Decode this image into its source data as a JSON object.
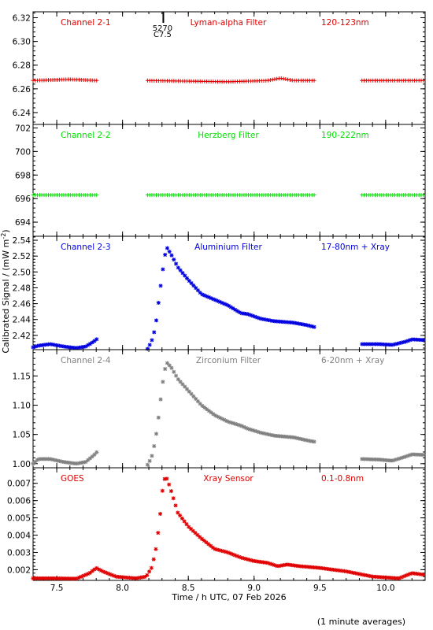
{
  "figure": {
    "ylabel_html": [
      "Calibrated Signal / (mW m",
      "-2",
      ")"
    ],
    "xlabel": "Time / h UTC, 07 Feb 2026",
    "footnote": "(1 minute averages)",
    "event": {
      "x": 8.31,
      "label_top": "5270",
      "label_bottom": "C7.5"
    }
  },
  "chart_data": [
    {
      "type": "scatter",
      "panel": "Channel 2-1",
      "name_label": "Channel 2-1",
      "filter_label": "Lyman-alpha Filter",
      "band_label": "120-123nm",
      "color": "#e00000",
      "marker": "plus",
      "xlim": [
        7.32,
        10.3
      ],
      "ylim": [
        6.23,
        6.325
      ],
      "yticks": [
        6.24,
        6.26,
        6.28,
        6.3,
        6.32
      ],
      "ytick_labels": [
        "6.24",
        "6.26",
        "6.28",
        "6.30",
        "6.32"
      ],
      "segments": [
        {
          "x_start": 7.32,
          "x_end": 7.81,
          "profile": [
            [
              7.32,
              6.267
            ],
            [
              7.6,
              6.268
            ],
            [
              7.81,
              6.267
            ]
          ]
        },
        {
          "x_start": 8.19,
          "x_end": 9.47,
          "profile": [
            [
              8.19,
              6.267
            ],
            [
              8.8,
              6.266
            ],
            [
              9.1,
              6.267
            ],
            [
              9.2,
              6.269
            ],
            [
              9.3,
              6.267
            ],
            [
              9.47,
              6.267
            ]
          ]
        },
        {
          "x_start": 9.82,
          "x_end": 10.3,
          "profile": [
            [
              9.82,
              6.267
            ],
            [
              10.3,
              6.267
            ]
          ]
        }
      ]
    },
    {
      "type": "scatter",
      "panel": "Channel 2-2",
      "name_label": "Channel 2-2",
      "filter_label": "Herzberg Filter",
      "band_label": "190-222nm",
      "color": "#00e000",
      "marker": "plus",
      "xlim": [
        7.32,
        10.3
      ],
      "ylim": [
        692.8,
        702.3
      ],
      "yticks": [
        694,
        696,
        698,
        700,
        702
      ],
      "ytick_labels": [
        "694",
        "696",
        "698",
        "700",
        "702"
      ],
      "segments": [
        {
          "x_start": 7.32,
          "x_end": 7.81,
          "profile": [
            [
              7.32,
              696.3
            ],
            [
              7.81,
              696.3
            ]
          ]
        },
        {
          "x_start": 8.19,
          "x_end": 9.47,
          "profile": [
            [
              8.19,
              696.3
            ],
            [
              9.47,
              696.3
            ]
          ]
        },
        {
          "x_start": 9.82,
          "x_end": 10.3,
          "profile": [
            [
              9.82,
              696.3
            ],
            [
              10.3,
              696.3
            ]
          ]
        }
      ]
    },
    {
      "type": "scatter",
      "panel": "Channel 2-3",
      "name_label": "Channel 2-3",
      "filter_label": "Aluminium Filter",
      "band_label": "17-80nm + Xray",
      "color": "#0000e0",
      "marker": "star",
      "xlim": [
        7.32,
        10.3
      ],
      "ylim": [
        2.402,
        2.545
      ],
      "yticks": [
        2.42,
        2.44,
        2.46,
        2.48,
        2.5,
        2.52,
        2.54
      ],
      "ytick_labels": [
        "2.42",
        "2.44",
        "2.46",
        "2.48",
        "2.50",
        "2.52",
        "2.54"
      ],
      "segments": [
        {
          "x_start": 7.32,
          "x_end": 7.81,
          "profile": [
            [
              7.32,
              2.405
            ],
            [
              7.36,
              2.407
            ],
            [
              7.45,
              2.409
            ],
            [
              7.55,
              2.406
            ],
            [
              7.65,
              2.404
            ],
            [
              7.72,
              2.406
            ],
            [
              7.78,
              2.412
            ],
            [
              7.81,
              2.416
            ]
          ]
        },
        {
          "x_start": 8.19,
          "x_end": 9.47,
          "profile": [
            [
              8.19,
              2.403
            ],
            [
              8.22,
              2.412
            ],
            [
              8.25,
              2.43
            ],
            [
              8.28,
              2.47
            ],
            [
              8.3,
              2.495
            ],
            [
              8.32,
              2.52
            ],
            [
              8.34,
              2.53
            ],
            [
              8.37,
              2.522
            ],
            [
              8.42,
              2.506
            ],
            [
              8.5,
              2.49
            ],
            [
              8.6,
              2.472
            ],
            [
              8.7,
              2.465
            ],
            [
              8.8,
              2.458
            ],
            [
              8.9,
              2.448
            ],
            [
              8.95,
              2.447
            ],
            [
              9.05,
              2.441
            ],
            [
              9.15,
              2.438
            ],
            [
              9.3,
              2.436
            ],
            [
              9.4,
              2.433
            ],
            [
              9.47,
              2.43
            ]
          ]
        },
        {
          "x_start": 9.82,
          "x_end": 10.3,
          "profile": [
            [
              9.82,
              2.409
            ],
            [
              9.95,
              2.409
            ],
            [
              10.05,
              2.408
            ],
            [
              10.15,
              2.412
            ],
            [
              10.2,
              2.415
            ],
            [
              10.3,
              2.414
            ]
          ]
        }
      ]
    },
    {
      "type": "scatter",
      "panel": "Channel 2-4",
      "name_label": "Channel 2-4",
      "filter_label": "Zirconium Filter",
      "band_label": "6-20nm + Xray",
      "color": "#808080",
      "marker": "star",
      "xlim": [
        7.32,
        10.3
      ],
      "ylim": [
        0.993,
        1.195
      ],
      "yticks": [
        1.0,
        1.05,
        1.1,
        1.15
      ],
      "ytick_labels": [
        "1.00",
        "1.05",
        "1.10",
        "1.15"
      ],
      "segments": [
        {
          "x_start": 7.32,
          "x_end": 7.81,
          "profile": [
            [
              7.32,
              1.0
            ],
            [
              7.36,
              1.008
            ],
            [
              7.45,
              1.008
            ],
            [
              7.55,
              1.003
            ],
            [
              7.65,
              1.0
            ],
            [
              7.72,
              1.003
            ],
            [
              7.78,
              1.014
            ],
            [
              7.81,
              1.021
            ]
          ]
        },
        {
          "x_start": 8.19,
          "x_end": 9.47,
          "profile": [
            [
              8.19,
              0.998
            ],
            [
              8.22,
              1.01
            ],
            [
              8.25,
              1.04
            ],
            [
              8.28,
              1.09
            ],
            [
              8.3,
              1.13
            ],
            [
              8.32,
              1.16
            ],
            [
              8.34,
              1.172
            ],
            [
              8.37,
              1.165
            ],
            [
              8.42,
              1.145
            ],
            [
              8.5,
              1.125
            ],
            [
              8.6,
              1.1
            ],
            [
              8.7,
              1.083
            ],
            [
              8.8,
              1.072
            ],
            [
              8.9,
              1.065
            ],
            [
              8.95,
              1.06
            ],
            [
              9.05,
              1.053
            ],
            [
              9.15,
              1.048
            ],
            [
              9.3,
              1.045
            ],
            [
              9.4,
              1.04
            ],
            [
              9.47,
              1.037
            ]
          ]
        },
        {
          "x_start": 9.82,
          "x_end": 10.3,
          "profile": [
            [
              9.82,
              1.008
            ],
            [
              9.95,
              1.007
            ],
            [
              10.05,
              1.005
            ],
            [
              10.15,
              1.012
            ],
            [
              10.2,
              1.016
            ],
            [
              10.3,
              1.015
            ]
          ]
        }
      ]
    },
    {
      "type": "scatter",
      "panel": "GOES",
      "name_label": "GOES",
      "filter_label": "Xray Sensor",
      "band_label": "0.1-0.8nm",
      "color": "#e00000",
      "marker": "star",
      "xlim": [
        7.32,
        10.3
      ],
      "ylim": [
        0.00138,
        0.0079
      ],
      "yticks": [
        0.002,
        0.003,
        0.004,
        0.005,
        0.006,
        0.007
      ],
      "ytick_labels": [
        "0.002",
        "0.003",
        "0.004",
        "0.005",
        "0.006",
        "0.007"
      ],
      "xticks": [
        7.5,
        8.0,
        8.5,
        9.0,
        9.5,
        10.0
      ],
      "xtick_labels": [
        "7.5",
        "8.0",
        "8.5",
        "9.0",
        "9.5",
        "10.0"
      ],
      "segments": [
        {
          "x_start": 7.32,
          "x_end": 10.3,
          "profile": [
            [
              7.32,
              0.0015
            ],
            [
              7.45,
              0.0015
            ],
            [
              7.65,
              0.00148
            ],
            [
              7.75,
              0.0018
            ],
            [
              7.8,
              0.0021
            ],
            [
              7.85,
              0.0019
            ],
            [
              7.95,
              0.0016
            ],
            [
              8.1,
              0.0015
            ],
            [
              8.18,
              0.0016
            ],
            [
              8.22,
              0.0021
            ],
            [
              8.25,
              0.003
            ],
            [
              8.28,
              0.0047
            ],
            [
              8.31,
              0.0071
            ],
            [
              8.33,
              0.0074
            ],
            [
              8.36,
              0.0068
            ],
            [
              8.42,
              0.0053
            ],
            [
              8.5,
              0.0045
            ],
            [
              8.6,
              0.0038
            ],
            [
              8.7,
              0.0032
            ],
            [
              8.8,
              0.003
            ],
            [
              8.9,
              0.0027
            ],
            [
              9.0,
              0.0025
            ],
            [
              9.1,
              0.0024
            ],
            [
              9.18,
              0.0022
            ],
            [
              9.25,
              0.0023
            ],
            [
              9.35,
              0.0022
            ],
            [
              9.5,
              0.0021
            ],
            [
              9.7,
              0.0019
            ],
            [
              9.9,
              0.0016
            ],
            [
              10.1,
              0.0015
            ],
            [
              10.2,
              0.0018
            ],
            [
              10.3,
              0.0017
            ]
          ]
        }
      ]
    }
  ]
}
